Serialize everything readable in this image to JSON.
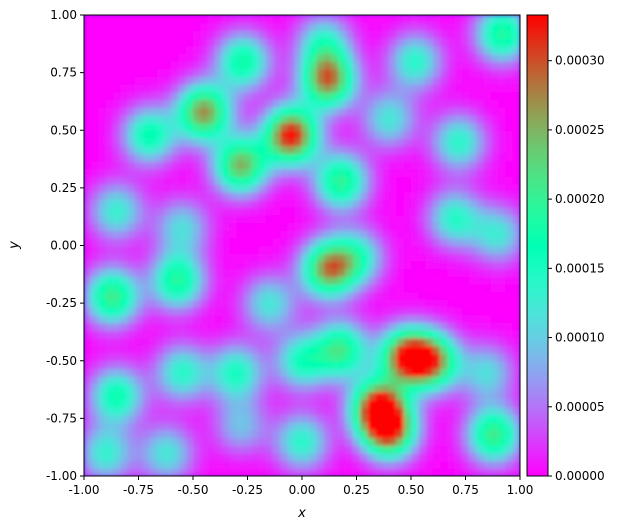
{
  "chart_data": {
    "type": "heatmap",
    "title": "",
    "xlabel": "x",
    "ylabel": "y",
    "xlim": [
      -1.0,
      1.0
    ],
    "ylim": [
      -1.0,
      1.0
    ],
    "x_ticks": [
      "-1.00",
      "-0.75",
      "-0.50",
      "-0.25",
      "0.00",
      "0.25",
      "0.50",
      "0.75",
      "1.00"
    ],
    "y_ticks": [
      "-1.00",
      "-0.75",
      "-0.50",
      "-0.25",
      "0.00",
      "0.25",
      "0.50",
      "0.75",
      "1.00"
    ],
    "x_tick_values": [
      -1.0,
      -0.75,
      -0.5,
      -0.25,
      0.0,
      0.25,
      0.5,
      0.75,
      1.0
    ],
    "y_tick_values": [
      -1.0,
      -0.75,
      -0.5,
      -0.25,
      0.0,
      0.25,
      0.5,
      0.75,
      1.0
    ],
    "colormap": "rainbow",
    "colorbar": {
      "range": [
        0.0,
        0.000333
      ],
      "ticks": [
        "0.00000",
        "0.00005",
        "0.00010",
        "0.00015",
        "0.00020",
        "0.00025",
        "0.00030"
      ],
      "tick_values": [
        0.0,
        5e-05,
        0.0001,
        0.00015,
        0.0002,
        0.00025,
        0.0003
      ]
    },
    "grid": false,
    "field_peaks": [
      {
        "x": -0.05,
        "y": 0.48,
        "value": 0.000333
      },
      {
        "x": 0.12,
        "y": 0.72,
        "value": 0.00028
      },
      {
        "x": -0.45,
        "y": 0.58,
        "value": 0.00027
      },
      {
        "x": -0.28,
        "y": 0.35,
        "value": 0.00025
      },
      {
        "x": 0.18,
        "y": 0.28,
        "value": 0.0002
      },
      {
        "x": -0.7,
        "y": 0.48,
        "value": 0.00017
      },
      {
        "x": -0.27,
        "y": 0.8,
        "value": 0.00018
      },
      {
        "x": 0.1,
        "y": 0.88,
        "value": 0.00013
      },
      {
        "x": 0.52,
        "y": 0.8,
        "value": 0.00014
      },
      {
        "x": 0.4,
        "y": 0.55,
        "value": 0.00012
      },
      {
        "x": 0.72,
        "y": 0.45,
        "value": 0.00014
      },
      {
        "x": 0.92,
        "y": 0.92,
        "value": 0.00019
      },
      {
        "x": 0.7,
        "y": 0.12,
        "value": 0.00014
      },
      {
        "x": 0.9,
        "y": 0.05,
        "value": 0.00012
      },
      {
        "x": -0.85,
        "y": 0.15,
        "value": 0.00013
      },
      {
        "x": -0.55,
        "y": 0.08,
        "value": 0.00011
      },
      {
        "x": 0.12,
        "y": -0.1,
        "value": 0.00026
      },
      {
        "x": 0.25,
        "y": -0.05,
        "value": 0.00014
      },
      {
        "x": -0.87,
        "y": -0.22,
        "value": 0.00021
      },
      {
        "x": -0.57,
        "y": -0.15,
        "value": 0.00019
      },
      {
        "x": -0.15,
        "y": -0.25,
        "value": 0.00012
      },
      {
        "x": 0.0,
        "y": -0.5,
        "value": 0.00015
      },
      {
        "x": 0.18,
        "y": -0.45,
        "value": 0.0002
      },
      {
        "x": 0.48,
        "y": -0.48,
        "value": 0.0003
      },
      {
        "x": 0.6,
        "y": -0.5,
        "value": 0.00025
      },
      {
        "x": 0.35,
        "y": -0.7,
        "value": 0.00031
      },
      {
        "x": 0.4,
        "y": -0.8,
        "value": 0.00029
      },
      {
        "x": -0.85,
        "y": -0.65,
        "value": 0.00017
      },
      {
        "x": -0.55,
        "y": -0.55,
        "value": 0.00014
      },
      {
        "x": -0.3,
        "y": -0.55,
        "value": 0.00015
      },
      {
        "x": -0.28,
        "y": -0.78,
        "value": 9e-05
      },
      {
        "x": -0.9,
        "y": -0.9,
        "value": 0.00013
      },
      {
        "x": -0.62,
        "y": -0.9,
        "value": 0.00012
      },
      {
        "x": 0.88,
        "y": -0.82,
        "value": 0.00021
      },
      {
        "x": 0.85,
        "y": -0.55,
        "value": 0.00011
      },
      {
        "x": 0.0,
        "y": -0.85,
        "value": 0.00014
      }
    ]
  }
}
